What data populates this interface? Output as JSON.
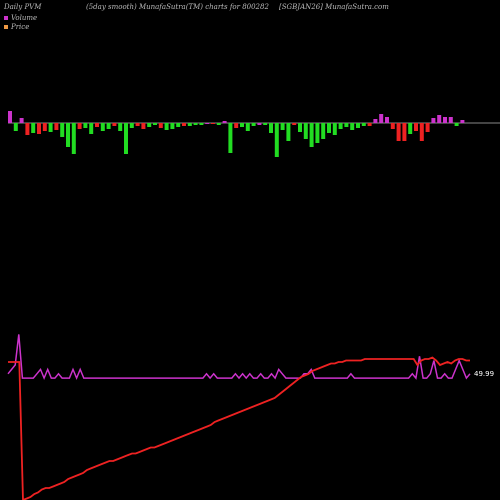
{
  "header": {
    "left": "Daily PVM",
    "center": "(5day smooth) MunafaSutra(TM) charts for 800282",
    "right": "[SGBJAN26] MunafaSutra.com"
  },
  "legend": {
    "volume_label": "Volume",
    "price_label": "Price"
  },
  "colors": {
    "background": "#000000",
    "up_bar": "#22dd22",
    "down_bar": "#ee2222",
    "mixed_bar": "#cc33cc",
    "price_line": "#ee2222",
    "volume_line": "#cc33cc",
    "baseline": "#888888"
  },
  "chart_data": {
    "type": "bar",
    "title": "Daily PVM",
    "panels": [
      "volume-bars",
      "price-volume-lines"
    ],
    "volume_bars": {
      "values": [
        12,
        -8,
        5,
        -12,
        -10,
        -11,
        -8,
        -9,
        -7,
        -14,
        -24,
        -31,
        -6,
        -5,
        -11,
        -4,
        -8,
        -6,
        -3,
        -8,
        -31,
        -5,
        -3,
        -6,
        -4,
        -2,
        -5,
        -7,
        -6,
        -4,
        -3,
        -3,
        -2,
        -2,
        -1,
        -1,
        -2,
        2,
        -30,
        -5,
        -4,
        -8,
        -3,
        -2,
        -2,
        -10,
        -34,
        -7,
        -18,
        -2,
        -9,
        -16,
        -24,
        -20,
        -16,
        -10,
        -12,
        -6,
        -4,
        -7,
        -5,
        -3,
        -3,
        4,
        9,
        6,
        -6,
        -18,
        -18,
        -11,
        -8,
        -18,
        -9,
        5,
        8,
        6,
        6,
        -3,
        3
      ],
      "colors": [
        "m",
        "g",
        "m",
        "r",
        "g",
        "r",
        "r",
        "g",
        "r",
        "g",
        "g",
        "g",
        "r",
        "g",
        "g",
        "r",
        "g",
        "g",
        "r",
        "g",
        "g",
        "g",
        "r",
        "r",
        "g",
        "g",
        "r",
        "g",
        "g",
        "g",
        "r",
        "g",
        "g",
        "g",
        "m",
        "r",
        "g",
        "m",
        "g",
        "r",
        "g",
        "g",
        "g",
        "m",
        "g",
        "g",
        "g",
        "g",
        "g",
        "r",
        "g",
        "g",
        "g",
        "g",
        "g",
        "g",
        "g",
        "g",
        "g",
        "g",
        "g",
        "g",
        "r",
        "m",
        "m",
        "m",
        "r",
        "r",
        "r",
        "g",
        "r",
        "r",
        "r",
        "m",
        "m",
        "m",
        "m",
        "g",
        "m"
      ]
    },
    "volume_line": {
      "values": [
        6,
        7,
        8,
        15,
        5,
        5,
        5,
        5,
        6,
        7,
        5,
        7,
        5,
        5,
        6,
        5,
        5,
        5,
        7,
        5,
        7,
        5,
        5,
        5,
        5,
        5,
        5,
        5,
        5,
        5,
        5,
        5,
        5,
        5,
        5,
        5,
        5,
        5,
        5,
        5,
        5,
        5,
        5,
        5,
        5,
        5,
        5,
        5,
        5,
        5,
        5,
        5,
        5,
        5,
        5,
        6,
        5,
        6,
        5,
        5,
        5,
        5,
        5,
        6,
        5,
        6,
        5,
        6,
        5,
        5,
        6,
        5,
        5,
        6,
        5,
        7,
        6,
        5,
        5,
        5,
        5,
        5,
        6,
        6,
        7,
        5,
        5,
        5,
        5,
        5,
        5,
        5,
        5,
        5,
        5,
        6,
        5,
        5,
        5,
        5,
        5,
        5,
        5,
        5,
        5,
        5,
        5,
        5,
        5,
        5,
        5,
        5,
        6,
        5,
        10,
        5,
        5,
        6,
        9,
        5,
        5,
        6,
        5,
        5,
        7,
        9,
        7,
        5,
        6
      ]
    },
    "price_line": {
      "values": [
        6,
        7,
        8,
        9,
        100,
        99,
        98,
        96,
        95,
        93,
        92,
        92,
        91,
        90,
        89,
        88,
        86,
        85,
        84,
        83,
        82,
        80,
        79,
        78,
        77,
        76,
        75,
        74,
        74,
        73,
        72,
        71,
        70,
        69,
        69,
        68,
        67,
        66,
        65,
        65,
        64,
        63,
        62,
        61,
        60,
        59,
        58,
        57,
        56,
        55,
        54,
        53,
        52,
        51,
        50,
        48,
        47,
        46,
        45,
        44,
        43,
        42,
        41,
        40,
        39,
        38,
        37,
        36,
        35,
        34,
        33,
        32,
        30,
        28,
        26,
        24,
        22,
        20,
        18,
        17,
        16,
        14,
        13,
        12,
        11,
        10,
        9,
        9,
        8,
        8,
        7,
        7,
        7,
        7,
        7,
        6,
        6,
        6,
        6,
        6,
        6,
        6,
        6,
        6,
        6,
        6,
        6,
        6,
        6,
        10,
        7,
        6,
        6,
        5,
        7,
        10,
        9,
        8,
        9,
        7,
        6,
        6,
        7,
        7
      ],
      "last_label": "49.99"
    }
  }
}
